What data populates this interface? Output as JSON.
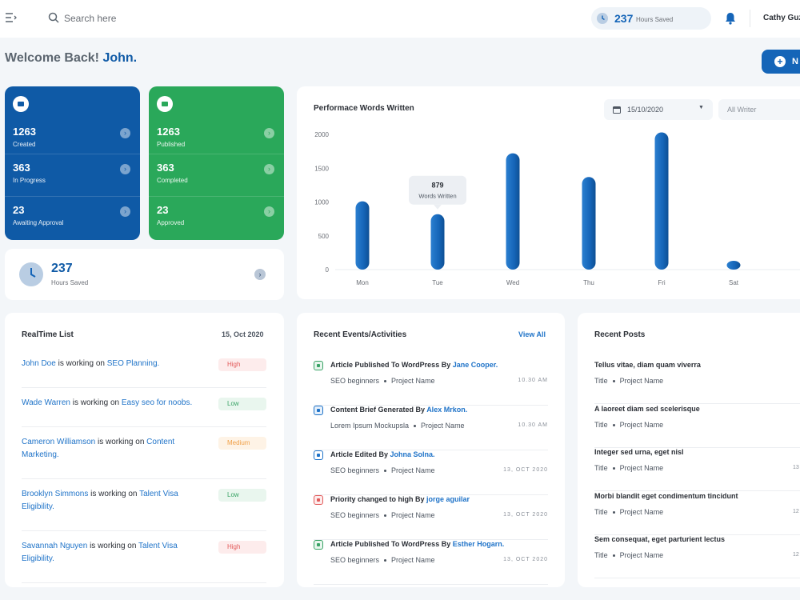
{
  "header": {
    "search_placeholder": "Search here",
    "hours_saved_value": "237",
    "hours_saved_label": "Hours Saved",
    "user_name": "Cathy Guzm"
  },
  "welcome": {
    "greeting": "Welcome Back!",
    "name": "John."
  },
  "new_button_label": "N",
  "stats_blue": [
    {
      "value": "1263",
      "label": "Created"
    },
    {
      "value": "363",
      "label": "In Progress"
    },
    {
      "value": "23",
      "label": "Awaiting Approval"
    }
  ],
  "stats_green": [
    {
      "value": "1263",
      "label": "Published"
    },
    {
      "value": "363",
      "label": "Completed"
    },
    {
      "value": "23",
      "label": "Approved"
    }
  ],
  "hours_card": {
    "value": "237",
    "label": "Hours Saved"
  },
  "chart": {
    "title": "Performace Words Written",
    "date_value": "15/10/2020",
    "writer_value": "All Writer",
    "tooltip_value": "879",
    "tooltip_label": "Words Written"
  },
  "chart_data": {
    "type": "bar",
    "title": "Performace Words Written",
    "categories": [
      "Mon",
      "Tue",
      "Wed",
      "Thu",
      "Fri",
      "Sat"
    ],
    "values": [
      1010,
      820,
      1720,
      1370,
      2030,
      130
    ],
    "yticks": [
      0,
      500,
      1000,
      1500,
      2000
    ],
    "ylim": [
      0,
      2000
    ],
    "bar_color": "#1565b8",
    "grid": false
  },
  "realtime": {
    "title": "RealTime List",
    "date": "15, Oct 2020",
    "items": [
      {
        "person": "John Doe",
        "mid": " is working on ",
        "task": "SEO Planning.",
        "status": "High"
      },
      {
        "person": "Wade Warren",
        "mid": " is working on ",
        "task": "Easy seo for noobs.",
        "status": "Low"
      },
      {
        "person": "Cameron Williamson",
        "mid": " is working on ",
        "task": "Content Marketing.",
        "status": "Medium"
      },
      {
        "person": "Brooklyn Simmons",
        "mid": " is working on ",
        "task": "Talent Visa Eligibility.",
        "status": "Low"
      },
      {
        "person": "Savannah Nguyen",
        "mid": " is working on ",
        "task": "Talent Visa Eligibility.",
        "status": "High"
      }
    ]
  },
  "events": {
    "title": "Recent Events/Activities",
    "view_all": "View All",
    "items": [
      {
        "action": "Article Published To WordPress By ",
        "who": "Jane Cooper.",
        "meta1": "SEO beginners",
        "meta2": "Project Name",
        "time": "10.30 AM",
        "icon": "upload-icon",
        "color": "#3aa366",
        "bg": "#e9f6ee"
      },
      {
        "action": "Content Brief Generated By ",
        "who": "Alex Mrkon.",
        "meta1": "Lorem Ipsum Mockupsla",
        "meta2": "Project Name",
        "time": "10.30 AM",
        "icon": "document-icon",
        "color": "#1f73c8",
        "bg": "#e6f0fb"
      },
      {
        "action": "Article Edited By ",
        "who": "Johna Solna.",
        "meta1": "SEO beginners",
        "meta2": "Project Name",
        "time": "13, OCT 2020",
        "icon": "pencil-icon",
        "color": "#1f73c8",
        "bg": "#ffffff"
      },
      {
        "action": "Priority changed to high By ",
        "who": "jorge aguilar",
        "meta1": "SEO beginners",
        "meta2": "Project Name",
        "time": "13, OCT 2020",
        "icon": "check-icon",
        "color": "#e25a5a",
        "bg": "#fdecec"
      },
      {
        "action": "Article Published To WordPress By ",
        "who": "Esther Hogarn.",
        "meta1": "SEO beginners",
        "meta2": "Project Name",
        "time": "13, OCT 2020",
        "icon": "upload-icon",
        "color": "#3aa366",
        "bg": "#e9f6ee"
      }
    ]
  },
  "posts": {
    "title": "Recent Posts",
    "items": [
      {
        "title": "Tellus vitae, diam quam viverra",
        "meta1": "Title",
        "meta2": "Project Name",
        "time": ""
      },
      {
        "title": "A laoreet diam sed scelerisque",
        "meta1": "Title",
        "meta2": "Project Name",
        "time": ""
      },
      {
        "title": "Integer sed urna, eget nisl",
        "meta1": "Title",
        "meta2": "Project Name",
        "time": "13"
      },
      {
        "title": "Morbi blandit eget condimentum tincidunt",
        "meta1": "Title",
        "meta2": "Project Name",
        "time": "12"
      },
      {
        "title": "Sem consequat, eget parturient lectus",
        "meta1": "Title",
        "meta2": "Project Name",
        "time": "12"
      }
    ]
  },
  "colors": {
    "primary": "#0f5aa6",
    "green": "#2aa85a",
    "link": "#1f73c8"
  }
}
